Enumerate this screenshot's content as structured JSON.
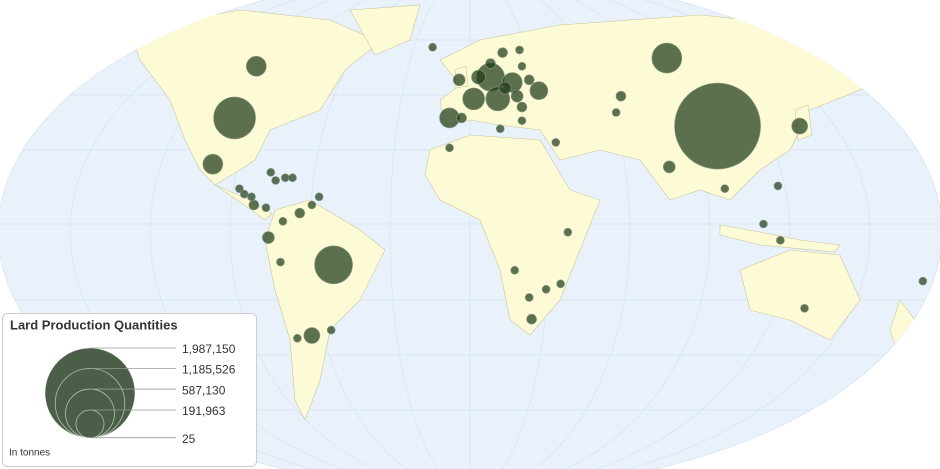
{
  "chart_data": {
    "type": "bubblemap",
    "title": "Lard Production Quantities",
    "unit_note": "In tonnes",
    "color": "#1f3a19",
    "legend_color": "#4b5e48",
    "size_ticks": [
      {
        "value": 1987150,
        "label": "1,987,150"
      },
      {
        "value": 1185526,
        "label": "1,185,526"
      },
      {
        "value": 587130,
        "label": "587,130"
      },
      {
        "value": 191963,
        "label": "191,963"
      },
      25
    ],
    "points": [
      {
        "lon": 105,
        "lat": 36,
        "value": 1814000
      },
      {
        "lon": -95,
        "lat": 39,
        "value": 432700
      },
      {
        "lon": -54,
        "lat": -15,
        "value": 354300
      },
      {
        "lon": 84,
        "lat": 61,
        "value": 220800
      },
      {
        "lon": 11,
        "lat": 54,
        "value": 192300
      },
      {
        "lon": 14,
        "lat": 46,
        "value": 141300
      },
      {
        "lon": 4,
        "lat": 46,
        "value": 118700
      },
      {
        "lon": -86,
        "lat": 58,
        "value": 98100
      },
      {
        "lon": -104,
        "lat": 22,
        "value": 98100
      },
      {
        "lon": -6,
        "lat": 39,
        "value": 98100
      },
      {
        "lon": 20,
        "lat": 52,
        "value": 98100
      },
      {
        "lon": 31,
        "lat": 49,
        "value": 79500
      },
      {
        "lon": 139,
        "lat": 36,
        "value": 62800
      },
      {
        "lon": -63,
        "lat": -41,
        "value": 62800
      },
      {
        "lon": 6,
        "lat": 54,
        "value": 48100
      },
      {
        "lon": -2,
        "lat": 53,
        "value": 35300
      },
      {
        "lon": 22,
        "lat": 47,
        "value": 35300
      },
      {
        "lon": 17,
        "lat": 50,
        "value": 35300
      },
      {
        "lon": -81,
        "lat": -5,
        "value": 35300
      },
      {
        "lon": 85,
        "lat": 21,
        "value": 35300
      },
      {
        "lon": -68,
        "lat": 4,
        "value": 24500
      },
      {
        "lon": 11,
        "lat": 59,
        "value": 24500
      },
      {
        "lon": 16,
        "lat": 63,
        "value": 24500
      },
      {
        "lon": 27,
        "lat": 53,
        "value": 24500
      },
      {
        "lon": -1,
        "lat": 39,
        "value": 24500
      },
      {
        "lon": 24,
        "lat": 43,
        "value": 24500
      },
      {
        "lon": 65,
        "lat": 47,
        "value": 24500
      },
      {
        "lon": -87,
        "lat": 7,
        "value": 24500
      },
      {
        "lon": 28,
        "lat": -35,
        "value": 24500
      },
      {
        "lon": -69,
        "lat": -42,
        "value": 15700
      },
      {
        "lon": -55,
        "lat": -39,
        "value": 15700
      },
      {
        "lon": -76,
        "lat": -14,
        "value": 15700
      },
      {
        "lon": -74,
        "lat": 17,
        "value": 15700
      },
      {
        "lon": -71,
        "lat": 17,
        "value": 15700
      },
      {
        "lon": -93,
        "lat": 13,
        "value": 15700
      },
      {
        "lon": -91,
        "lat": 11,
        "value": 15700
      },
      {
        "lon": -88,
        "lat": 10,
        "value": 15700
      },
      {
        "lon": -82,
        "lat": 6,
        "value": 15700
      },
      {
        "lon": -80,
        "lat": 19,
        "value": 15700
      },
      {
        "lon": -78,
        "lat": 16,
        "value": 15700
      },
      {
        "lon": -75,
        "lat": 1,
        "value": 15700
      },
      {
        "lon": -63,
        "lat": 7,
        "value": 15700
      },
      {
        "lon": -60,
        "lat": 10,
        "value": 15700
      },
      {
        "lon": 23,
        "lat": 64,
        "value": 15700
      },
      {
        "lon": 24,
        "lat": 58,
        "value": 15700
      },
      {
        "lon": 24,
        "lat": 38,
        "value": 15700
      },
      {
        "lon": 15,
        "lat": 35,
        "value": 15700
      },
      {
        "lon": -13,
        "lat": 65,
        "value": 15700
      },
      {
        "lon": 38,
        "lat": 30,
        "value": 15700
      },
      {
        "lon": -6,
        "lat": 28,
        "value": 15700
      },
      {
        "lon": 63,
        "lat": 41,
        "value": 15700
      },
      {
        "lon": 130,
        "lat": 14,
        "value": 15700
      },
      {
        "lon": 108,
        "lat": 13,
        "value": 15700
      },
      {
        "lon": 124,
        "lat": 0,
        "value": 15700
      },
      {
        "lon": 131,
        "lat": -6,
        "value": 15700
      },
      {
        "lon": 141,
        "lat": -31,
        "value": 15700
      },
      {
        "lon": 190,
        "lat": -21,
        "value": 15700
      },
      {
        "lon": 43,
        "lat": -3,
        "value": 15700
      },
      {
        "lon": 21,
        "lat": -17,
        "value": 15700
      },
      {
        "lon": 34,
        "lat": -24,
        "value": 15700
      },
      {
        "lon": 40,
        "lat": -22,
        "value": 15700
      },
      {
        "lon": 27,
        "lat": -27,
        "value": 15700
      }
    ]
  }
}
